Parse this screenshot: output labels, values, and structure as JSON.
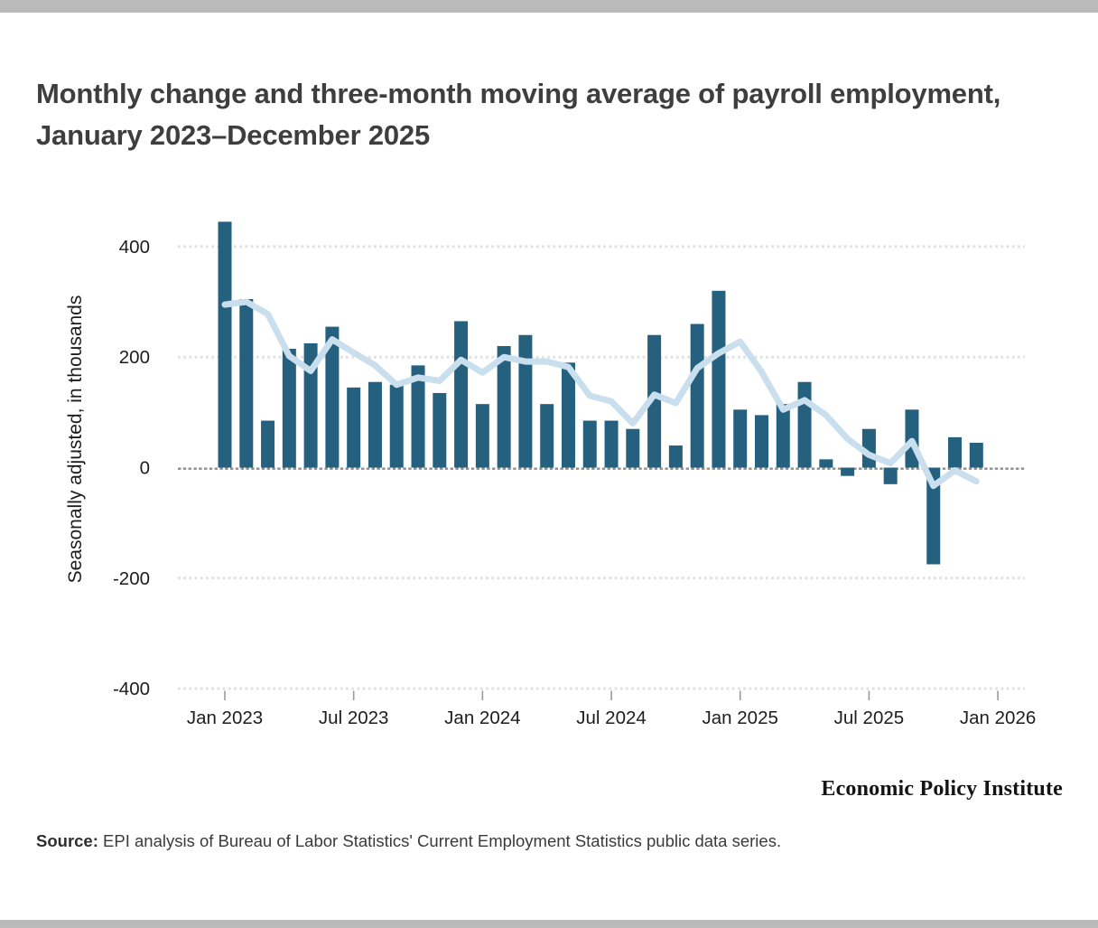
{
  "page": {
    "title": "Monthly change and three-month moving average of payroll employment, January 2023–December 2025"
  },
  "chart_data": {
    "type": "bar+line",
    "title": "Monthly change and three-month moving average of payroll employment, January 2023–December 2025",
    "xlabel": "",
    "ylabel": "Seasonally adjusted, in thousands",
    "ylim": [
      -400,
      450
    ],
    "grid": "dotted horizontal gridlines",
    "legend": "none",
    "x": [
      "Jan 2023",
      "Feb 2023",
      "Mar 2023",
      "Apr 2023",
      "May 2023",
      "Jun 2023",
      "Jul 2023",
      "Aug 2023",
      "Sep 2023",
      "Oct 2023",
      "Nov 2023",
      "Dec 2023",
      "Jan 2024",
      "Feb 2024",
      "Mar 2024",
      "Apr 2024",
      "May 2024",
      "Jun 2024",
      "Jul 2024",
      "Aug 2024",
      "Sep 2024",
      "Oct 2024",
      "Nov 2024",
      "Dec 2024",
      "Jan 2025",
      "Feb 2025",
      "Mar 2025",
      "Apr 2025",
      "May 2025",
      "Jun 2025",
      "Jul 2025",
      "Aug 2025",
      "Sep 2025",
      "Oct 2025",
      "Nov 2025",
      "Dec 2025"
    ],
    "series": [
      {
        "name": "Monthly change in payroll employment",
        "type": "bar",
        "values": [
          445,
          305,
          85,
          215,
          225,
          255,
          145,
          155,
          150,
          185,
          135,
          265,
          115,
          220,
          240,
          115,
          190,
          85,
          85,
          70,
          240,
          40,
          260,
          320,
          105,
          95,
          115,
          155,
          15,
          -15,
          70,
          -30,
          105,
          -175,
          55,
          45
        ]
      },
      {
        "name": "Three-month moving average",
        "type": "line",
        "values": [
          295,
          300,
          278,
          202,
          175,
          232,
          208,
          185,
          150,
          163,
          157,
          195,
          172,
          200,
          192,
          192,
          182,
          130,
          120,
          80,
          132,
          117,
          180,
          207,
          228,
          173,
          105,
          122,
          95,
          52,
          23,
          8,
          48,
          -33,
          -5,
          -25
        ]
      }
    ],
    "y_ticks": [
      400,
      200,
      0,
      -200,
      -400
    ],
    "x_ticks": [
      "Jan 2023",
      "Jul 2023",
      "Jan 2024",
      "Jul 2024",
      "Jan 2025",
      "Jul 2025",
      "Jan 2026"
    ],
    "x_tick_month_indices": [
      0,
      6,
      12,
      18,
      24,
      30,
      36
    ],
    "colors": {
      "bar": "#25617e",
      "line": "#c9dfee",
      "gridline": "#e1e1e1",
      "zero_line": "#8c8c8c",
      "tick": "#9b9b9b",
      "tick_label": "#1d1d1d"
    }
  },
  "footer": {
    "logo_text": "Economic Policy Institute",
    "source_label": "Source:",
    "source_text": " EPI analysis of Bureau of Labor Statistics' Current Employment Statistics public data series."
  }
}
